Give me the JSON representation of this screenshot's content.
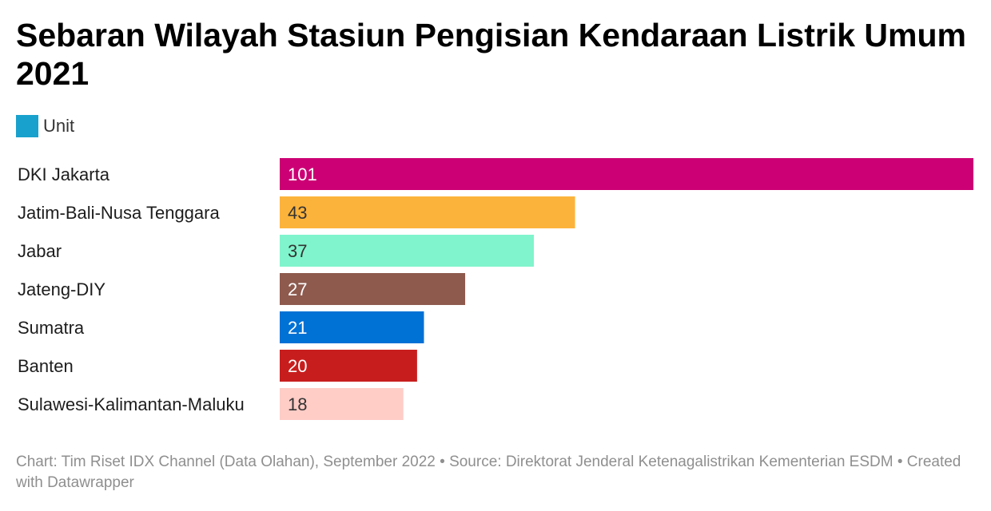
{
  "title": "Sebaran Wilayah Stasiun Pengisian Kendaraan Listrik Umum 2021",
  "legend": {
    "label": "Unit",
    "color": "#18a1cd"
  },
  "footer": "Chart: Tim Riset IDX Channel (Data Olahan), September 2022 • Source: Direktorat Jenderal Ketenagalistrikan Kementerian ESDM • Created with Datawrapper",
  "chart_data": {
    "type": "bar",
    "orientation": "horizontal",
    "categories": [
      "DKI Jakarta",
      "Jatim-Bali-Nusa Tenggara",
      "Jabar",
      "Jateng-DIY",
      "Sumatra",
      "Banten",
      "Sulawesi-Kalimantan-Maluku"
    ],
    "series": [
      {
        "name": "Unit",
        "values": [
          101,
          43,
          37,
          27,
          21,
          20,
          18
        ]
      }
    ],
    "colors": [
      "#cc0074",
      "#fcb33b",
      "#80f4cc",
      "#8e5a4e",
      "#0071d5",
      "#c71e1d",
      "#ffccc6"
    ],
    "label_colors": [
      "#ffffff",
      "#333333",
      "#333333",
      "#ffffff",
      "#ffffff",
      "#ffffff",
      "#333333"
    ],
    "xlim": [
      0,
      101
    ],
    "grid": false,
    "legend_position": "top-left"
  }
}
